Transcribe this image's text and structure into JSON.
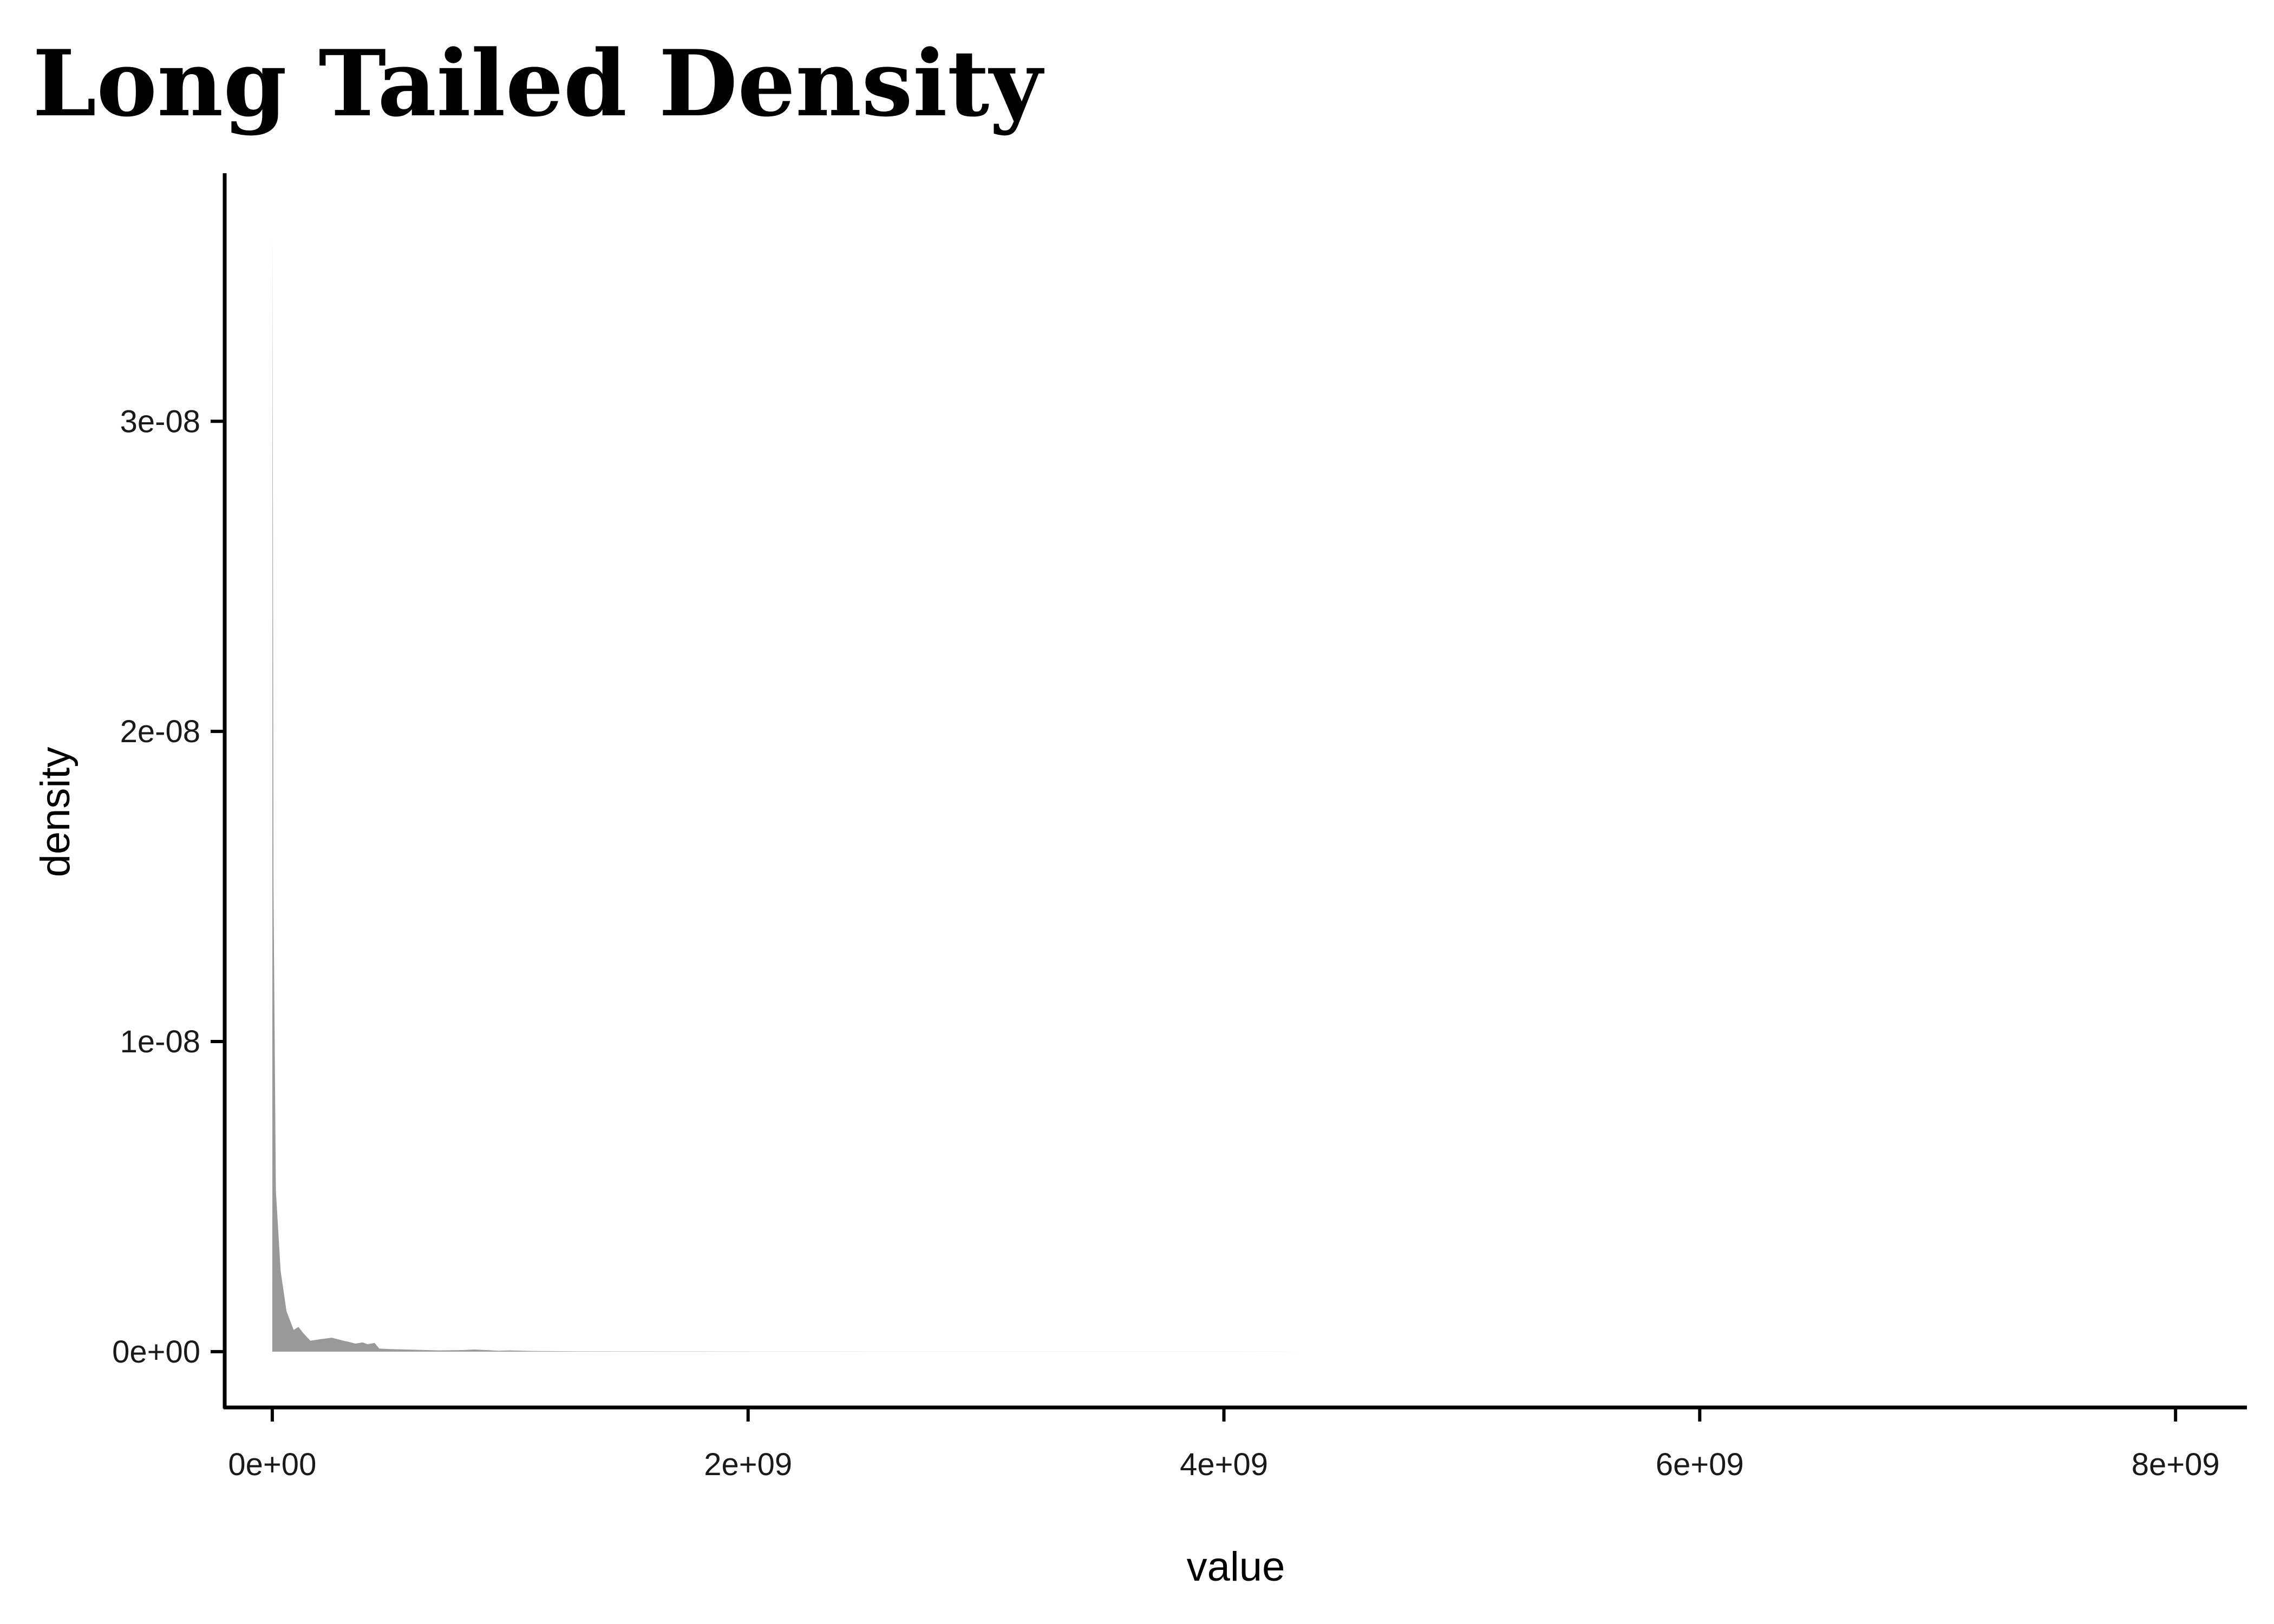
{
  "chart_data": {
    "type": "area",
    "title": "Long Tailed Density",
    "xlabel": "value",
    "ylabel": "density",
    "xlim": [
      -200000000,
      8300000000
    ],
    "ylim": [
      -1.8e-09,
      3.8e-08
    ],
    "x_ticks": [
      0,
      2000000000,
      4000000000,
      6000000000,
      8000000000
    ],
    "x_tick_labels": [
      "0e+00",
      "2e+09",
      "4e+09",
      "6e+09",
      "8e+09"
    ],
    "y_ticks": [
      0,
      1e-08,
      2e-08,
      3e-08
    ],
    "y_tick_labels": [
      "0e+00",
      "1e-08",
      "2e-08",
      "3e-08"
    ],
    "grid": false,
    "legend": "none",
    "fill_color": "#999999",
    "axis_color": "#000000",
    "series": [
      {
        "x": [
          0,
          1000000,
          5000000,
          15000000,
          35000000,
          60000000,
          90000000,
          110000000,
          130000000,
          160000000,
          200000000,
          250000000,
          300000000,
          320000000,
          350000000,
          380000000,
          400000000,
          430000000,
          450000000,
          500000000,
          600000000,
          700000000,
          800000000,
          850000000,
          900000000,
          950000000,
          1000000000,
          1100000000,
          1200000000,
          1300000000,
          1500000000,
          1800000000,
          2000000000,
          2500000000,
          3000000000,
          4000000000,
          5000000000,
          6000000000,
          7000000000,
          7800000000
        ],
        "y": [
          0,
          3.6e-08,
          1.5e-08,
          5.2e-09,
          2.6e-09,
          1.3e-09,
          7e-10,
          8e-10,
          6e-10,
          3.5e-10,
          4e-10,
          4.5e-10,
          3.5e-10,
          3.2e-10,
          2.6e-10,
          3e-10,
          2.4e-10,
          2.8e-10,
          1e-10,
          8e-11,
          6e-11,
          4e-11,
          5e-11,
          7e-11,
          5e-11,
          3e-11,
          4e-11,
          2e-11,
          1.5e-11,
          1e-11,
          8e-12,
          6e-12,
          5e-12,
          3e-12,
          2e-12,
          1e-12,
          5e-13,
          3e-13,
          2e-13,
          0
        ]
      }
    ]
  }
}
